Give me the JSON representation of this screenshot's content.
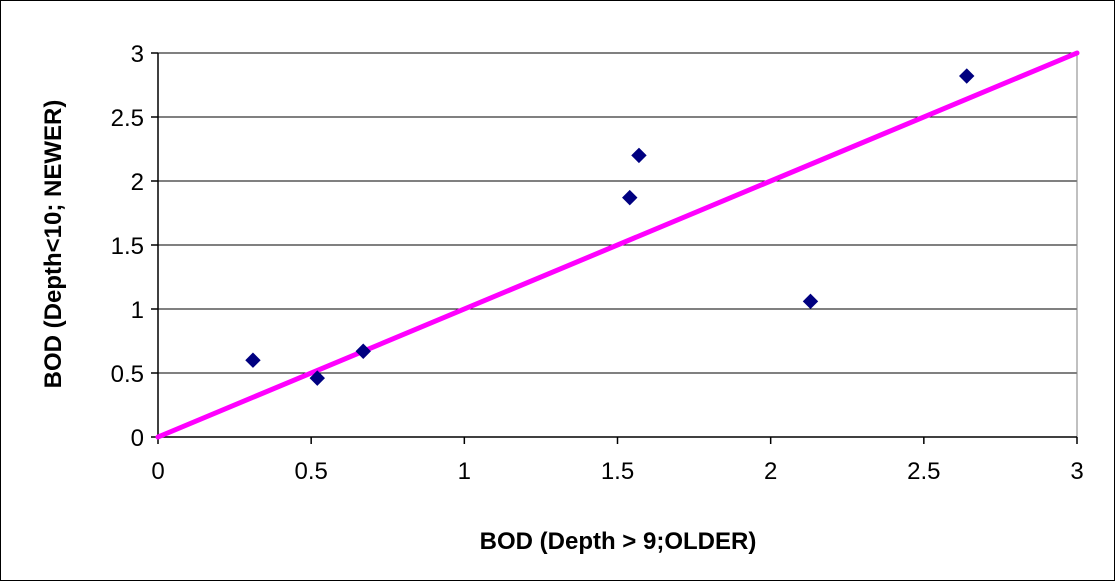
{
  "chart_data": {
    "type": "scatter",
    "title": "",
    "xlabel": "BOD (Depth > 9;OLDER)",
    "ylabel": "BOD (Depth<10; NEWER)",
    "xlim": [
      0,
      3
    ],
    "ylim": [
      0,
      3
    ],
    "x_ticks": [
      "0",
      "0.5",
      "1",
      "1.5",
      "2",
      "2.5",
      "3"
    ],
    "y_ticks": [
      "0",
      "0.5",
      "1",
      "1.5",
      "2",
      "2.5",
      "3"
    ],
    "grid": "horizontal",
    "legend": "none",
    "series": [
      {
        "color": "#000080",
        "marker": "diamond",
        "points": [
          {
            "x": 0.31,
            "y": 0.6
          },
          {
            "x": 0.52,
            "y": 0.46
          },
          {
            "x": 0.67,
            "y": 0.67
          },
          {
            "x": 1.54,
            "y": 1.87
          },
          {
            "x": 1.57,
            "y": 2.2
          },
          {
            "x": 2.13,
            "y": 1.06
          },
          {
            "x": 2.64,
            "y": 2.82
          }
        ]
      }
    ],
    "reference_line": {
      "from": [
        0,
        0
      ],
      "to": [
        3,
        3
      ],
      "color": "#FF00FF"
    }
  }
}
